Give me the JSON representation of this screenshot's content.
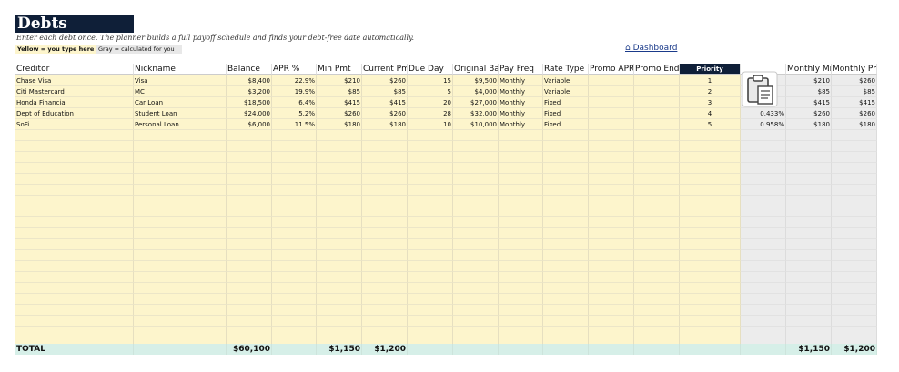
{
  "title": "Debts",
  "subtitle": "Enter each debt once. The planner builds a full payoff schedule and finds your debt-free date automatically.",
  "legend": {
    "yellow": "Yellow = you type here",
    "gray": "Gray = calculated for you"
  },
  "dashboard_link": "⌂ Dashboard",
  "columns": [
    "Creditor",
    "Nickname",
    "Balance",
    "APR %",
    "Min Pmt",
    "Current Pm",
    "Due Day",
    "Original Ba",
    "Pay Freq",
    "Rate Type",
    "Promo APR",
    "Promo End",
    "Priority",
    "",
    "Monthly Mi",
    "Monthly Pmt"
  ],
  "rows": [
    {
      "creditor": "Chase Visa",
      "nickname": "Visa",
      "balance": "$8,400",
      "apr": "22.9%",
      "min_pmt": "$210",
      "current_pmt": "$260",
      "due_day": "15",
      "original_balance": "$9,500",
      "pay_freq": "Monthly",
      "rate_type": "Variable",
      "promo_apr": "",
      "promo_end": "",
      "priority": "1",
      "monthly_rate": "",
      "monthly_min": "$210",
      "monthly_pmt": "$260"
    },
    {
      "creditor": "Citi Mastercard",
      "nickname": "MC",
      "balance": "$3,200",
      "apr": "19.9%",
      "min_pmt": "$85",
      "current_pmt": "$85",
      "due_day": "5",
      "original_balance": "$4,000",
      "pay_freq": "Monthly",
      "rate_type": "Variable",
      "promo_apr": "",
      "promo_end": "",
      "priority": "2",
      "monthly_rate": "",
      "monthly_min": "$85",
      "monthly_pmt": "$85"
    },
    {
      "creditor": "Honda Financial",
      "nickname": "Car Loan",
      "balance": "$18,500",
      "apr": "6.4%",
      "min_pmt": "$415",
      "current_pmt": "$415",
      "due_day": "20",
      "original_balance": "$27,000",
      "pay_freq": "Monthly",
      "rate_type": "Fixed",
      "promo_apr": "",
      "promo_end": "",
      "priority": "3",
      "monthly_rate": "",
      "monthly_min": "$415",
      "monthly_pmt": "$415"
    },
    {
      "creditor": "Dept of Education",
      "nickname": "Student Loan",
      "balance": "$24,000",
      "apr": "5.2%",
      "min_pmt": "$260",
      "current_pmt": "$260",
      "due_day": "28",
      "original_balance": "$32,000",
      "pay_freq": "Monthly",
      "rate_type": "Fixed",
      "promo_apr": "",
      "promo_end": "",
      "priority": "4",
      "monthly_rate": "0.433%",
      "monthly_min": "$260",
      "monthly_pmt": "$260"
    },
    {
      "creditor": "SoFi",
      "nickname": "Personal Loan",
      "balance": "$6,000",
      "apr": "11.5%",
      "min_pmt": "$180",
      "current_pmt": "$180",
      "due_day": "10",
      "original_balance": "$10,000",
      "pay_freq": "Monthly",
      "rate_type": "Fixed",
      "promo_apr": "",
      "promo_end": "",
      "priority": "5",
      "monthly_rate": "0.958%",
      "monthly_min": "$180",
      "monthly_pmt": "$180"
    }
  ],
  "totals": {
    "label": "TOTAL",
    "balance": "$60,100",
    "min_pmt": "$1,150",
    "current_pmt": "$1,200",
    "monthly_min": "$1,150",
    "monthly_pmt": "$1,200"
  }
}
